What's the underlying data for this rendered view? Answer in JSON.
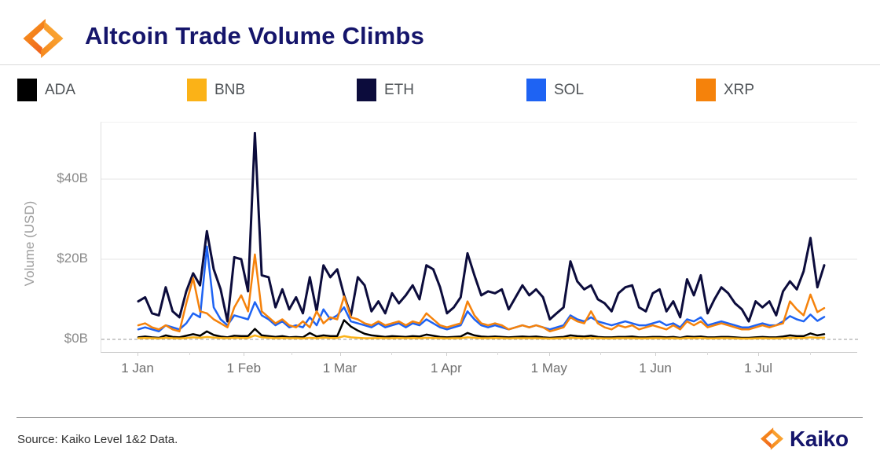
{
  "header": {
    "title": "Altcoin Trade Volume Climbs"
  },
  "footer": {
    "source": "Source: Kaiko Level 1&2 Data.",
    "brand": "Kaiko"
  },
  "colors": {
    "title_navy": "#15156B",
    "grid": "#E9E9E9",
    "zero_dash": "#ADADAD",
    "logo_orange_dark": "#F2711C",
    "logo_orange_light": "#FBB03B"
  },
  "chart_data": {
    "type": "line",
    "title": "Altcoin Trade Volume Climbs",
    "ylabel": "Volume (USD)",
    "ylim": [
      0,
      54
    ],
    "grid": "horizontal",
    "legend_position": "top",
    "y_ticks": [
      {
        "label": "$0B",
        "value": 0
      },
      {
        "label": "$20B",
        "value": 20
      },
      {
        "label": "$40B",
        "value": 40
      }
    ],
    "x_unit": "days since 1 Jan",
    "x_range_days": [
      0,
      201
    ],
    "x_ticks": [
      {
        "label": "1 Jan",
        "day": 0
      },
      {
        "label": "1 Feb",
        "day": 31
      },
      {
        "label": "1 Mar",
        "day": 59
      },
      {
        "label": "1 Apr",
        "day": 90
      },
      {
        "label": "1 May",
        "day": 120
      },
      {
        "label": "1 Jun",
        "day": 151
      },
      {
        "label": "1 Jul",
        "day": 181
      }
    ],
    "x_minor_days": [
      15,
      45,
      74,
      105,
      135,
      166,
      196
    ],
    "days": [
      0,
      2,
      4,
      6,
      8,
      10,
      12,
      14,
      16,
      18,
      20,
      22,
      24,
      26,
      28,
      30,
      32,
      34,
      36,
      38,
      40,
      42,
      44,
      46,
      48,
      50,
      52,
      54,
      56,
      58,
      60,
      62,
      64,
      66,
      68,
      70,
      72,
      74,
      76,
      78,
      80,
      82,
      84,
      86,
      88,
      90,
      92,
      94,
      96,
      98,
      100,
      102,
      104,
      106,
      108,
      110,
      112,
      114,
      116,
      118,
      120,
      122,
      124,
      126,
      128,
      130,
      132,
      134,
      136,
      138,
      140,
      142,
      144,
      146,
      148,
      150,
      152,
      154,
      156,
      158,
      160,
      162,
      164,
      166,
      168,
      170,
      172,
      174,
      176,
      178,
      180,
      182,
      184,
      186,
      188,
      190,
      192,
      194,
      196,
      198,
      200
    ],
    "series": [
      {
        "name": "ADA",
        "color": "#000000",
        "values": [
          0.5,
          0.7,
          0.5,
          0.4,
          1,
          0.6,
          0.5,
          0.9,
          1.3,
          0.9,
          2,
          1.1,
          0.7,
          0.5,
          0.9,
          0.8,
          0.8,
          2.6,
          1,
          0.8,
          0.6,
          0.8,
          0.5,
          0.6,
          0.5,
          1.6,
          0.7,
          1,
          0.8,
          0.8,
          4.8,
          3.2,
          2.2,
          1.4,
          1,
          0.8,
          0.6,
          0.8,
          0.7,
          0.6,
          0.8,
          0.7,
          1.2,
          0.9,
          0.6,
          0.5,
          0.6,
          0.7,
          1.6,
          1,
          0.7,
          0.6,
          0.7,
          0.6,
          0.5,
          0.6,
          0.7,
          0.6,
          0.7,
          0.5,
          0.4,
          0.5,
          0.6,
          1,
          0.8,
          0.7,
          0.9,
          0.6,
          0.5,
          0.5,
          0.6,
          0.6,
          0.7,
          0.5,
          0.5,
          0.6,
          0.6,
          0.5,
          0.6,
          0.4,
          0.7,
          0.6,
          0.7,
          0.5,
          0.5,
          0.6,
          0.6,
          0.5,
          0.4,
          0.4,
          0.5,
          0.6,
          0.5,
          0.5,
          0.7,
          1,
          0.8,
          0.8,
          1.5,
          1,
          1.3
        ]
      },
      {
        "name": "BNB",
        "color": "#FBB217",
        "values": [
          0.3,
          0.35,
          0.3,
          0.25,
          0.4,
          0.3,
          0.25,
          0.35,
          0.5,
          0.4,
          0.6,
          0.45,
          0.35,
          0.3,
          0.4,
          0.35,
          0.35,
          1,
          0.5,
          0.4,
          0.3,
          0.35,
          0.3,
          0.3,
          0.25,
          0.4,
          0.3,
          0.45,
          0.35,
          0.35,
          0.8,
          0.5,
          0.4,
          0.3,
          0.3,
          0.35,
          0.3,
          0.3,
          0.35,
          0.3,
          0.35,
          0.3,
          0.4,
          0.35,
          0.3,
          0.25,
          0.3,
          0.3,
          0.5,
          0.4,
          0.3,
          0.3,
          0.35,
          0.3,
          0.25,
          0.3,
          0.3,
          0.3,
          0.3,
          0.25,
          0.2,
          0.25,
          0.3,
          0.4,
          0.35,
          0.3,
          0.35,
          0.3,
          0.25,
          0.25,
          0.3,
          0.3,
          0.3,
          0.25,
          0.25,
          0.3,
          0.3,
          0.25,
          0.3,
          0.2,
          0.35,
          0.3,
          0.35,
          0.25,
          0.25,
          0.3,
          0.3,
          0.25,
          0.2,
          0.2,
          0.25,
          0.3,
          0.25,
          0.25,
          0.3,
          0.4,
          0.35,
          0.35,
          0.5,
          0.4,
          0.45
        ]
      },
      {
        "name": "ETH",
        "color": "#0C0C3C",
        "values": [
          9.5,
          10.5,
          6.5,
          6,
          13,
          7,
          5.5,
          12,
          16.5,
          13.5,
          27,
          17.5,
          12.5,
          4.5,
          20.5,
          20,
          12,
          51.5,
          16,
          15.5,
          8,
          12.5,
          7.5,
          10.5,
          6.5,
          15.5,
          7,
          18.5,
          15.5,
          17.5,
          11,
          6,
          15.5,
          13.5,
          7,
          9.5,
          6.5,
          11.5,
          9,
          11,
          13.5,
          10,
          18.5,
          17.5,
          13,
          6.5,
          8,
          10.5,
          21.5,
          16,
          11,
          12,
          11.5,
          12.5,
          7.5,
          10.5,
          13.5,
          11,
          12.5,
          10.5,
          5,
          6.5,
          8,
          19.5,
          14.5,
          12.5,
          13.5,
          10,
          9,
          7,
          11.5,
          13,
          13.5,
          8,
          7,
          11.5,
          12.5,
          7,
          9.5,
          5.5,
          15,
          11,
          16,
          6.5,
          10,
          13,
          11.5,
          9,
          7.5,
          4.5,
          9.5,
          8,
          9.5,
          6,
          12,
          14.5,
          12.5,
          17,
          25.3,
          13,
          18.5
        ]
      },
      {
        "name": "SOL",
        "color": "#1E63F3",
        "values": [
          2.5,
          3,
          2.5,
          2,
          3.5,
          3,
          2.5,
          4,
          6.5,
          5.5,
          23.2,
          8,
          5,
          3.5,
          6,
          5.5,
          5,
          9.3,
          6,
          5,
          3.5,
          4.5,
          3,
          3.5,
          3,
          5.5,
          3.5,
          7.5,
          5,
          6,
          8,
          4.5,
          4,
          3.5,
          3,
          4,
          3,
          3.5,
          4,
          3,
          4,
          3.5,
          5,
          4,
          3,
          2.5,
          3,
          3.5,
          7,
          5,
          3.5,
          3,
          3.5,
          3,
          2.5,
          3,
          3.5,
          3,
          3.5,
          3,
          2.5,
          3,
          3.5,
          6,
          5,
          4.5,
          5.5,
          4.5,
          4,
          3.5,
          4,
          4.5,
          4,
          3.5,
          3.5,
          4,
          4.5,
          3.5,
          4,
          3,
          5,
          4.5,
          5.5,
          3.5,
          4,
          4.5,
          4,
          3.5,
          3,
          3,
          3.5,
          4,
          3.5,
          3.5,
          4.5,
          5.8,
          5,
          4.5,
          6.2,
          4.6,
          5.6
        ]
      },
      {
        "name": "XRP",
        "color": "#F5820B",
        "values": [
          3.5,
          4,
          3,
          2.5,
          3.5,
          2.5,
          2,
          9,
          15.3,
          7,
          6.5,
          5,
          4,
          3,
          8,
          11,
          7,
          21.2,
          7,
          5.5,
          4,
          5,
          3.5,
          3,
          4.5,
          3,
          7,
          4,
          5.5,
          5,
          10.7,
          5.5,
          5,
          4,
          3.5,
          4.5,
          3.5,
          4,
          4.5,
          3.5,
          4.5,
          4,
          6.5,
          5,
          3.5,
          3,
          3.5,
          4,
          9.5,
          6,
          4,
          3.5,
          4,
          3.5,
          2.5,
          3,
          3.5,
          3,
          3.5,
          3,
          2,
          2.5,
          3,
          5.5,
          4.5,
          4,
          7,
          4,
          3,
          2.5,
          3.5,
          3,
          3.5,
          2.5,
          3,
          3.5,
          3,
          2.5,
          3.5,
          2.5,
          4.5,
          3.5,
          4.5,
          3,
          3.5,
          4,
          3.5,
          3,
          2.5,
          2.5,
          3,
          3.5,
          3,
          3.5,
          4,
          9.5,
          7.5,
          6,
          11.2,
          6.8,
          7.8
        ]
      }
    ]
  }
}
